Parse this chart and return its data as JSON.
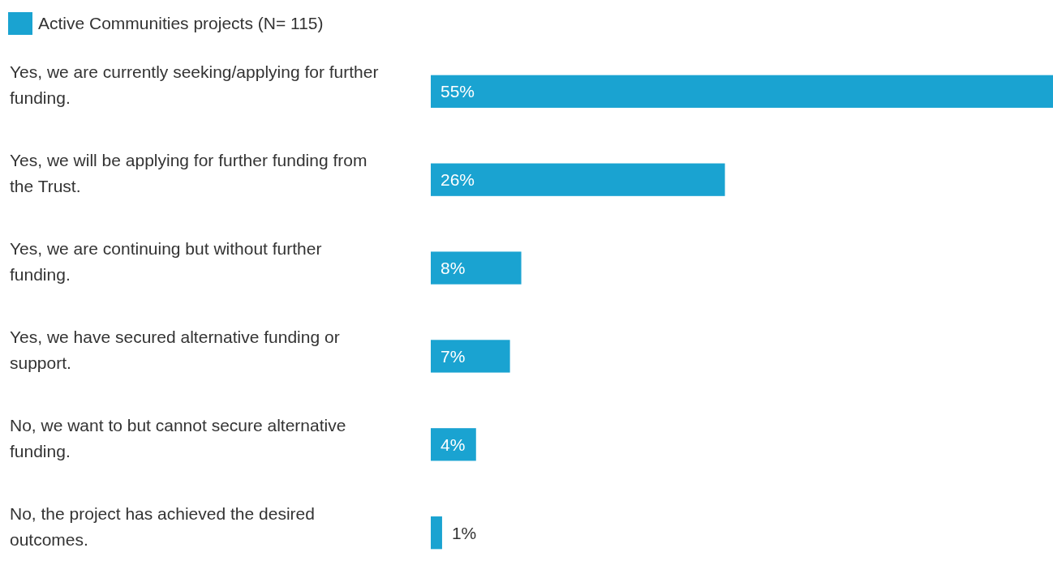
{
  "chart_data": {
    "type": "bar",
    "orientation": "horizontal",
    "categories": [
      "Yes, we are currently seeking/applying for further funding.",
      "Yes, we will be applying for further funding from the Trust.",
      "Yes, we are continuing but without further funding.",
      "Yes, we have secured alternative funding or support.",
      "No, we want to but cannot secure alternative funding.",
      "No, the project has achieved the desired outcomes."
    ],
    "series": [
      {
        "name": "Active Communities projects (N= 115)",
        "color": "#1aa3d1",
        "values": [
          55,
          26,
          8,
          7,
          4,
          1
        ],
        "value_labels": [
          "55%",
          "26%",
          "8%",
          "7%",
          "4%",
          "1%"
        ]
      }
    ],
    "legend": "top left"
  }
}
